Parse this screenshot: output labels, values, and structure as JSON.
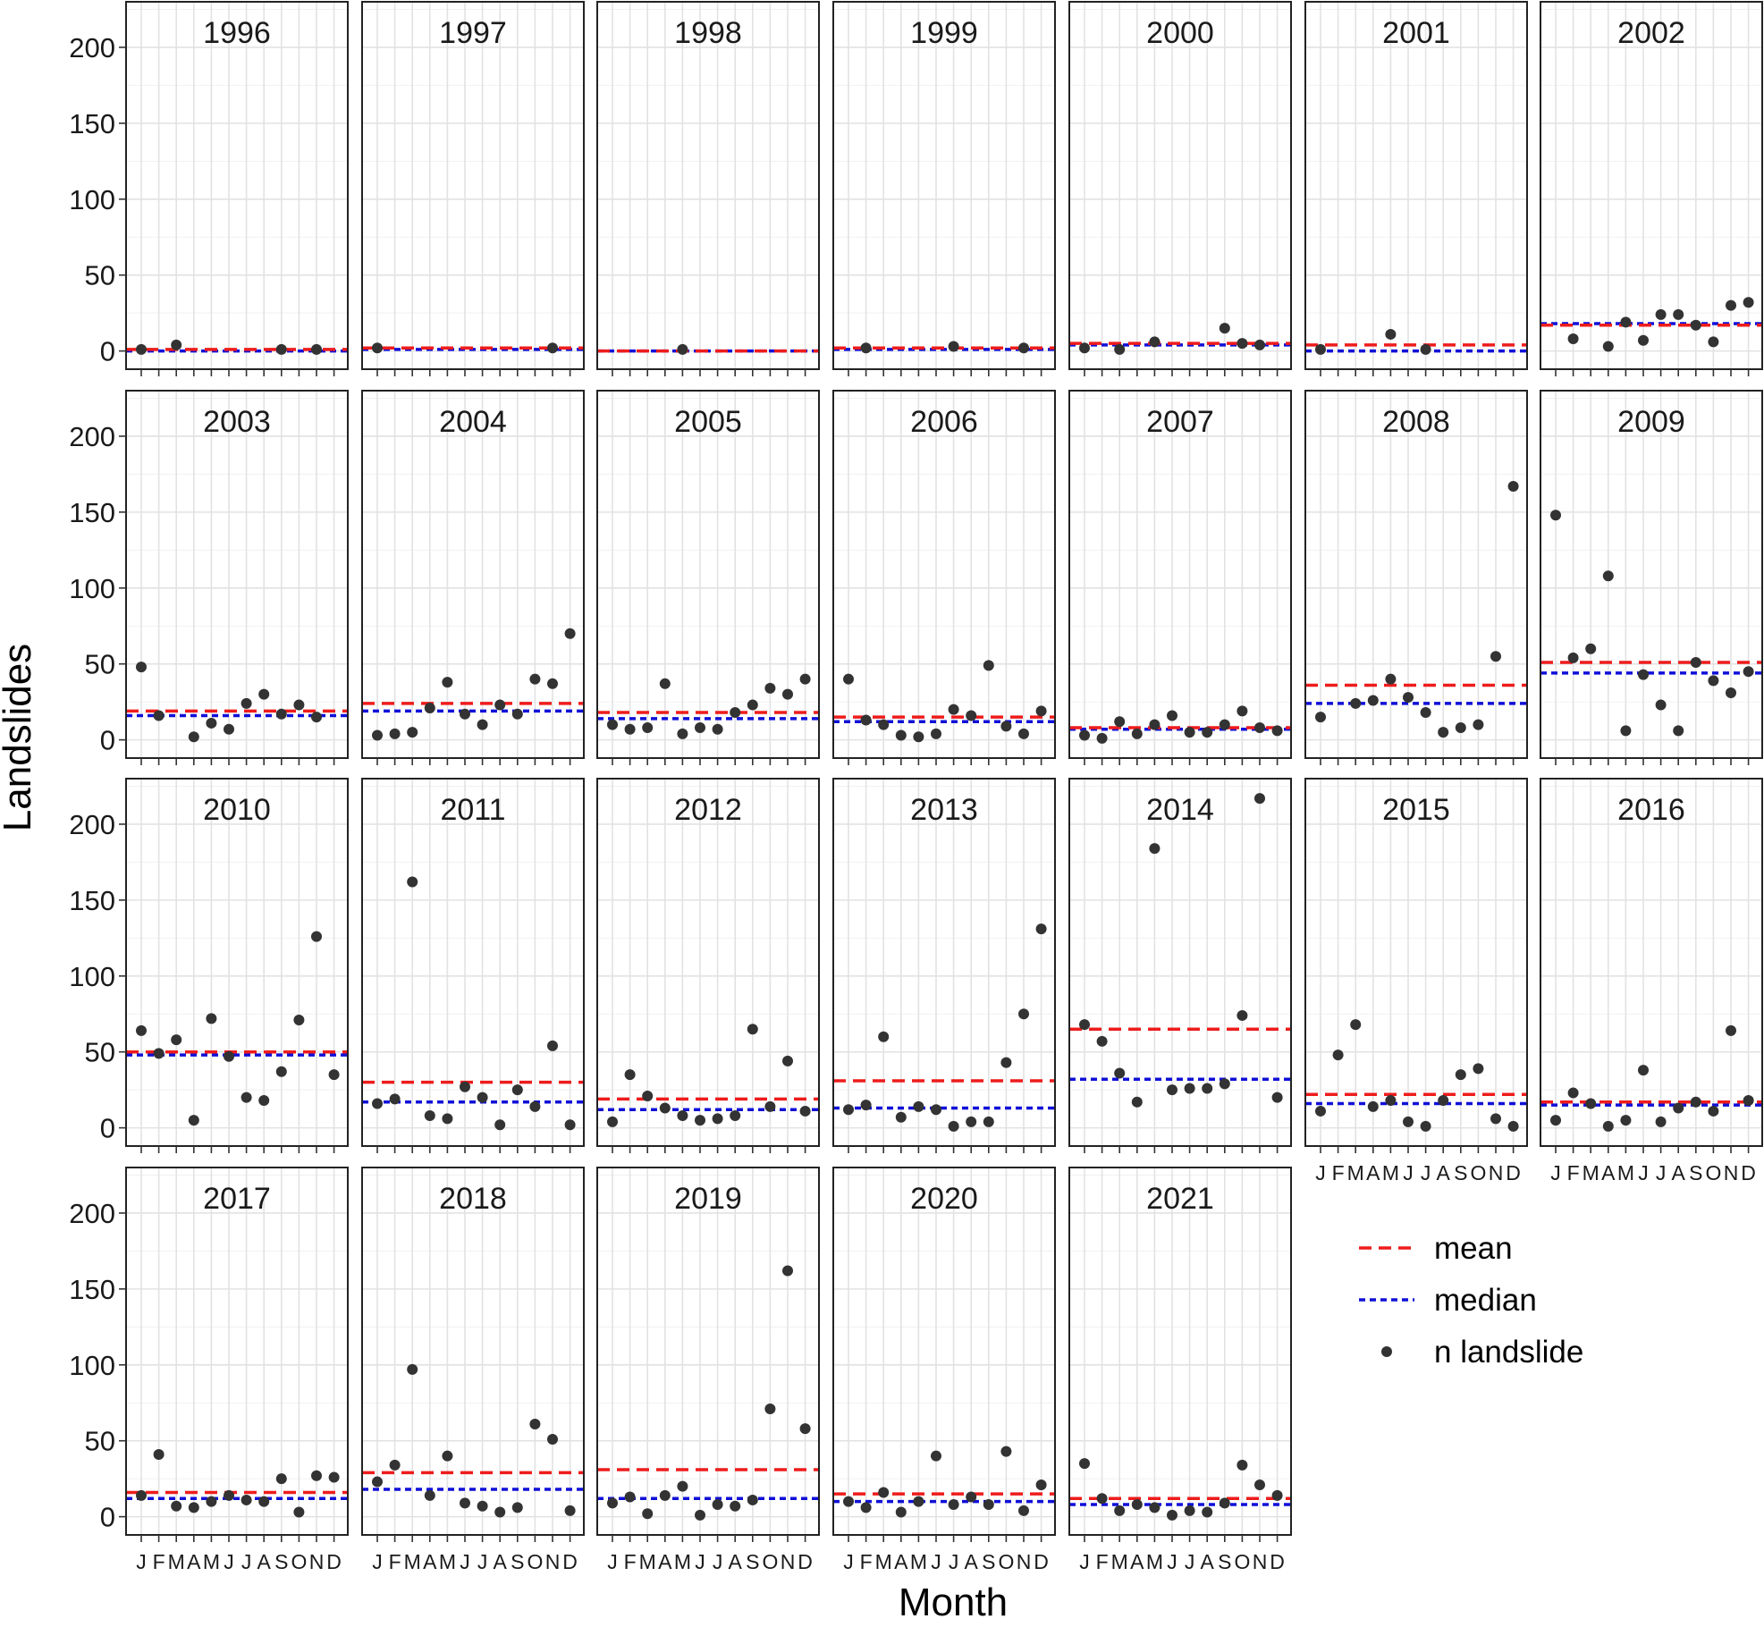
{
  "chart_data": {
    "type": "scatter",
    "xlabel": "Month",
    "ylabel": "Landslides",
    "ylim": [
      -12,
      230
    ],
    "yticks": [
      0,
      50,
      100,
      150,
      200
    ],
    "x_categories": [
      "J",
      "F",
      "M",
      "A",
      "M",
      "J",
      "J",
      "A",
      "S",
      "O",
      "N",
      "D"
    ],
    "grid": true,
    "legend_placement": "bottom-right",
    "colors": {
      "mean": "#ee1c1c",
      "median": "#1010d8",
      "point": "#333333"
    },
    "legend": [
      {
        "key": "mean",
        "label": "mean",
        "style": "long-dash"
      },
      {
        "key": "median",
        "label": "median",
        "style": "short-dash"
      },
      {
        "key": "n",
        "label": "n landslide",
        "style": "point"
      }
    ],
    "panels": [
      {
        "title": "1996",
        "mean": 1,
        "median": 0,
        "values": [
          1,
          null,
          4,
          null,
          null,
          null,
          null,
          null,
          1,
          null,
          1,
          null
        ]
      },
      {
        "title": "1997",
        "mean": 2,
        "median": 1,
        "values": [
          2,
          null,
          null,
          null,
          null,
          null,
          null,
          null,
          null,
          null,
          2,
          null
        ]
      },
      {
        "title": "1998",
        "mean": 0,
        "median": 0,
        "values": [
          null,
          null,
          null,
          null,
          1,
          null,
          null,
          null,
          null,
          null,
          null,
          null
        ]
      },
      {
        "title": "1999",
        "mean": 2,
        "median": 1,
        "values": [
          null,
          2,
          null,
          null,
          null,
          null,
          3,
          null,
          null,
          null,
          2,
          null
        ]
      },
      {
        "title": "2000",
        "mean": 5,
        "median": 4,
        "values": [
          2,
          null,
          1,
          null,
          6,
          null,
          null,
          null,
          15,
          5,
          4,
          null
        ]
      },
      {
        "title": "2001",
        "mean": 4,
        "median": 0,
        "values": [
          1,
          null,
          null,
          null,
          11,
          null,
          1,
          null,
          null,
          null,
          null,
          null
        ]
      },
      {
        "title": "2002",
        "mean": 17,
        "median": 18,
        "values": [
          null,
          8,
          null,
          3,
          19,
          7,
          24,
          24,
          17,
          6,
          30,
          32
        ]
      },
      {
        "title": "2003",
        "mean": 19,
        "median": 16,
        "values": [
          48,
          16,
          null,
          2,
          11,
          7,
          24,
          30,
          17,
          23,
          15,
          null
        ]
      },
      {
        "title": "2004",
        "mean": 24,
        "median": 19,
        "values": [
          3,
          4,
          5,
          21,
          38,
          17,
          10,
          23,
          17,
          40,
          37,
          70
        ]
      },
      {
        "title": "2005",
        "mean": 18,
        "median": 14,
        "values": [
          10,
          7,
          8,
          37,
          4,
          8,
          7,
          18,
          23,
          34,
          30,
          40
        ]
      },
      {
        "title": "2006",
        "mean": 15,
        "median": 12,
        "values": [
          40,
          13,
          10,
          3,
          2,
          4,
          20,
          16,
          49,
          9,
          4,
          19
        ]
      },
      {
        "title": "2007",
        "mean": 8,
        "median": 7,
        "values": [
          3,
          1,
          12,
          4,
          10,
          16,
          5,
          5,
          10,
          19,
          8,
          6
        ]
      },
      {
        "title": "2008",
        "mean": 36,
        "median": 24,
        "values": [
          15,
          null,
          24,
          26,
          40,
          28,
          18,
          5,
          8,
          10,
          55,
          167
        ]
      },
      {
        "title": "2009",
        "mean": 51,
        "median": 44,
        "values": [
          148,
          54,
          60,
          108,
          6,
          43,
          23,
          6,
          51,
          39,
          31,
          45
        ]
      },
      {
        "title": "2010",
        "mean": 50,
        "median": 48,
        "values": [
          64,
          49,
          58,
          5,
          72,
          47,
          20,
          18,
          37,
          71,
          126,
          35
        ]
      },
      {
        "title": "2011",
        "mean": 30,
        "median": 17,
        "values": [
          16,
          19,
          162,
          8,
          6,
          27,
          20,
          2,
          25,
          14,
          54,
          2
        ]
      },
      {
        "title": "2012",
        "mean": 19,
        "median": 12,
        "values": [
          4,
          35,
          21,
          13,
          8,
          5,
          6,
          8,
          65,
          14,
          44,
          11
        ]
      },
      {
        "title": "2013",
        "mean": 31,
        "median": 13,
        "values": [
          12,
          15,
          60,
          7,
          14,
          12,
          1,
          4,
          4,
          43,
          75,
          131
        ]
      },
      {
        "title": "2014",
        "mean": 65,
        "median": 32,
        "values": [
          68,
          57,
          36,
          17,
          184,
          25,
          26,
          26,
          29,
          74,
          217,
          20
        ]
      },
      {
        "title": "2015",
        "mean": 22,
        "median": 16,
        "values": [
          11,
          48,
          68,
          14,
          18,
          4,
          1,
          18,
          35,
          39,
          6,
          1
        ]
      },
      {
        "title": "2016",
        "mean": 17,
        "median": 15,
        "values": [
          5,
          23,
          16,
          1,
          5,
          38,
          4,
          13,
          17,
          11,
          64,
          18
        ]
      },
      {
        "title": "2017",
        "mean": 16,
        "median": 12,
        "values": [
          14,
          41,
          7,
          6,
          10,
          14,
          11,
          10,
          25,
          3,
          27,
          26
        ]
      },
      {
        "title": "2018",
        "mean": 29,
        "median": 18,
        "values": [
          23,
          34,
          97,
          14,
          40,
          9,
          7,
          3,
          6,
          61,
          51,
          4
        ]
      },
      {
        "title": "2019",
        "mean": 31,
        "median": 12,
        "values": [
          9,
          13,
          2,
          14,
          20,
          1,
          8,
          7,
          11,
          71,
          162,
          58
        ]
      },
      {
        "title": "2020",
        "mean": 15,
        "median": 10,
        "values": [
          10,
          6,
          16,
          3,
          10,
          40,
          8,
          13,
          8,
          43,
          4,
          21
        ]
      },
      {
        "title": "2021",
        "mean": 12,
        "median": 8,
        "values": [
          35,
          12,
          4,
          8,
          6,
          1,
          4,
          3,
          9,
          34,
          21,
          14
        ]
      }
    ]
  }
}
